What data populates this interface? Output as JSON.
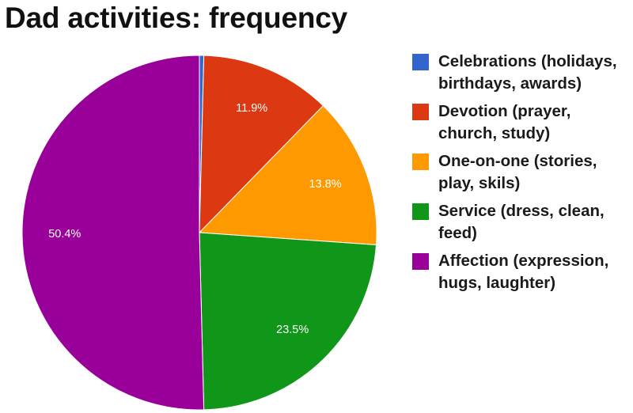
{
  "chart_data": {
    "type": "pie",
    "title": "Dad activities: frequency",
    "slices": [
      {
        "label": "Celebrations (holidays, birthdays, awards)",
        "value": 0.4,
        "display": "",
        "color": "#3366cc"
      },
      {
        "label": "Devotion (prayer, church, study)",
        "value": 11.9,
        "display": "11.9%",
        "color": "#dc3912"
      },
      {
        "label": "One-on-one (stories, play, skils)",
        "value": 13.8,
        "display": "13.8%",
        "color": "#ff9900"
      },
      {
        "label": "Service (dress, clean, feed)",
        "value": 23.5,
        "display": "23.5%",
        "color": "#109618"
      },
      {
        "label": "Affection (expression, hugs, laughter)",
        "value": 50.4,
        "display": "50.4%",
        "color": "#990099"
      }
    ],
    "legend_position": "right",
    "unit": "%"
  }
}
